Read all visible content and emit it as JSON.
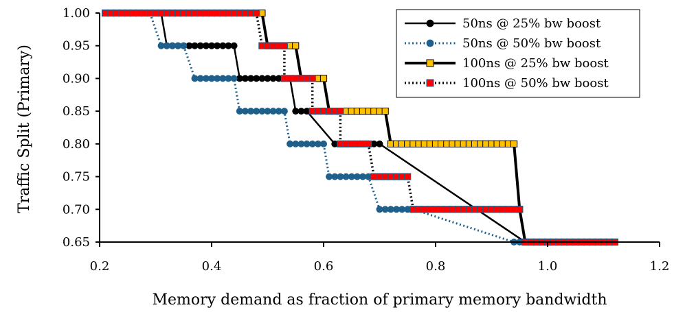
{
  "chart_data": {
    "type": "line",
    "title": "",
    "xlabel": "Memory demand as fraction of primary memory bandwidth",
    "ylabel": "Traffic Split (Primary)",
    "xlim": [
      0.2,
      1.2
    ],
    "ylim": [
      0.65,
      1.0
    ],
    "xticks": [
      0.2,
      0.4,
      0.6,
      0.8,
      1.0,
      1.2
    ],
    "xtick_labels": [
      "0.2",
      "0.4",
      "0.6",
      "0.8",
      "1.0",
      "1.2"
    ],
    "yticks": [
      0.65,
      0.7,
      0.75,
      0.8,
      0.85,
      0.9,
      0.95,
      1.0
    ],
    "ytick_labels": [
      "0.65",
      "0.70",
      "0.75",
      "0.80",
      "0.85",
      "0.90",
      "0.95",
      "1.00"
    ],
    "grid": false,
    "legend_position": "top-right",
    "series": [
      {
        "name": "50ns @ 25% bw boost",
        "line_color": "#000000",
        "line_style": "solid",
        "line_width": 2.5,
        "marker": "circle",
        "marker_fill": "#000000",
        "marker_stroke": "#000000",
        "steps": [
          [
            0.21,
            0.31,
            1.0
          ],
          [
            0.32,
            0.44,
            0.95
          ],
          [
            0.45,
            0.54,
            0.9
          ],
          [
            0.55,
            0.57,
            0.85
          ],
          [
            0.62,
            0.7,
            0.8
          ],
          [
            0.96,
            1.12,
            0.65
          ]
        ]
      },
      {
        "name": "50ns @ 50% bw boost",
        "line_color": "#1f5f8b",
        "line_style": "dotted",
        "line_width": 3,
        "marker": "circle",
        "marker_fill": "#1f5f8b",
        "marker_stroke": "#1f5f8b",
        "steps": [
          [
            0.21,
            0.29,
            1.0
          ],
          [
            0.31,
            0.35,
            0.95
          ],
          [
            0.37,
            0.44,
            0.9
          ],
          [
            0.45,
            0.53,
            0.85
          ],
          [
            0.54,
            0.6,
            0.8
          ],
          [
            0.61,
            0.68,
            0.75
          ],
          [
            0.7,
            0.76,
            0.7
          ],
          [
            0.94,
            1.12,
            0.65
          ]
        ]
      },
      {
        "name": "100ns @ 25% bw boost",
        "line_color": "#000000",
        "line_style": "solid",
        "line_width": 4,
        "marker": "square",
        "marker_fill": "#ffc000",
        "marker_stroke": "#000000",
        "steps": [
          [
            0.21,
            0.49,
            1.0
          ],
          [
            0.5,
            0.55,
            0.95
          ],
          [
            0.56,
            0.6,
            0.9
          ],
          [
            0.61,
            0.71,
            0.85
          ],
          [
            0.72,
            0.94,
            0.8
          ],
          [
            0.95,
            0.95,
            0.7
          ],
          [
            0.96,
            1.12,
            0.65
          ]
        ]
      },
      {
        "name": "100ns @ 50% bw boost",
        "line_color": "#000000",
        "line_style": "dotted",
        "line_width": 3.5,
        "marker": "square",
        "marker_fill": "#ff0000",
        "marker_stroke": "#1f5f8b",
        "steps": [
          [
            0.21,
            0.48,
            1.0
          ],
          [
            0.49,
            0.53,
            0.95
          ],
          [
            0.53,
            0.58,
            0.9
          ],
          [
            0.58,
            0.63,
            0.85
          ],
          [
            0.63,
            0.68,
            0.8
          ],
          [
            0.69,
            0.75,
            0.75
          ],
          [
            0.76,
            0.95,
            0.7
          ],
          [
            0.96,
            1.12,
            0.65
          ]
        ]
      }
    ]
  }
}
